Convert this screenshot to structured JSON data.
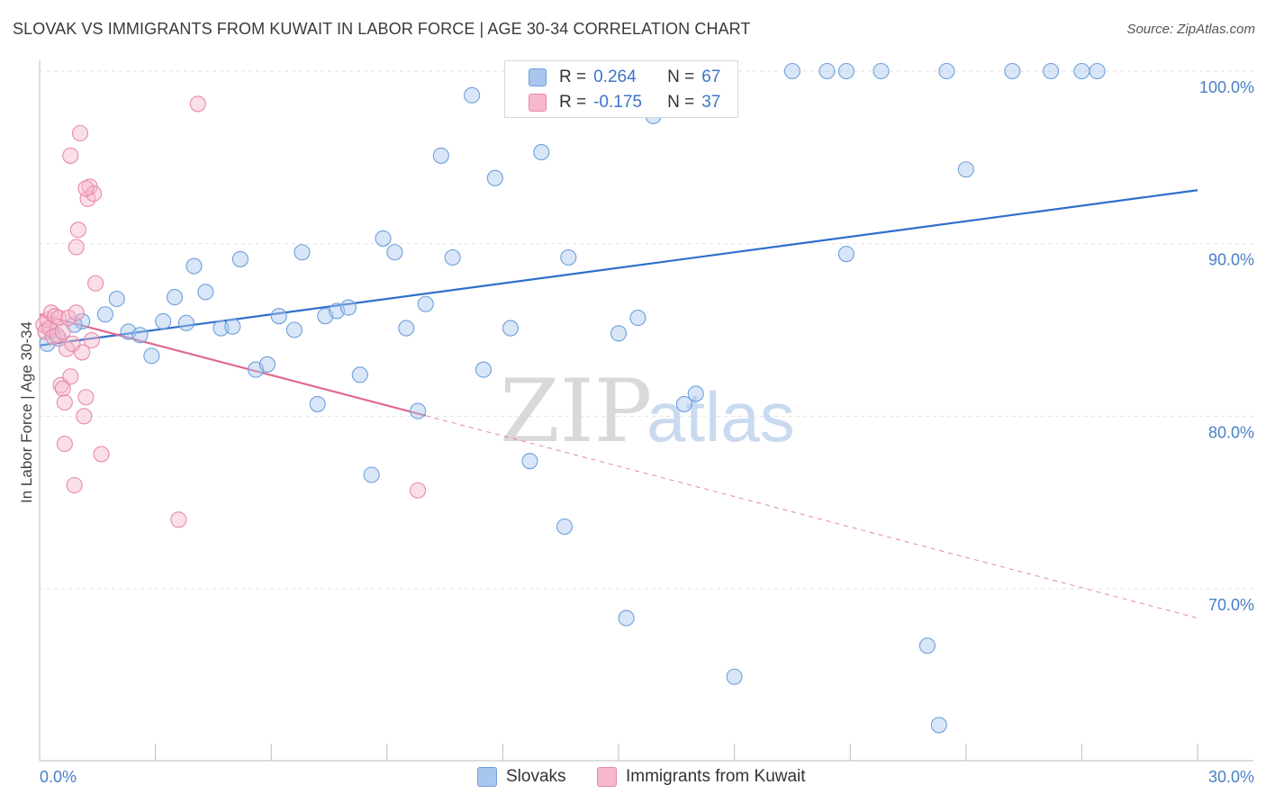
{
  "header": {
    "title": "SLOVAK VS IMMIGRANTS FROM KUWAIT IN LABOR FORCE | AGE 30-34 CORRELATION CHART",
    "source": "Source: ZipAtlas.com"
  },
  "watermark": {
    "zip": "ZIP",
    "atlas": "atlas"
  },
  "colors": {
    "blue_fill": "#a9c7ee",
    "blue_stroke": "#6f9fdc",
    "blue_line": "#2f6fcc",
    "pink_fill": "#f6b8cb",
    "pink_stroke": "#e88aa7",
    "pink_line": "#e06990",
    "grid": "#e2e2e2",
    "tick_text": "#4a7fc6"
  },
  "legend_top": {
    "rows": [
      {
        "r_label": "R =",
        "r_value": "0.264",
        "n_label": "N =",
        "n_value": "67"
      },
      {
        "r_label": "R =",
        "r_value": "-0.175",
        "n_label": "N =",
        "n_value": "37"
      }
    ]
  },
  "legend_bottom": {
    "items": [
      "Slovaks",
      "Immigrants from Kuwait"
    ]
  },
  "chart_data": {
    "type": "scatter",
    "title": "SLOVAK VS IMMIGRANTS FROM KUWAIT IN LABOR FORCE | AGE 30-34 CORRELATION CHART",
    "xlabel": "",
    "ylabel": "In Labor Force | Age 30-34",
    "xlim": [
      0,
      30
    ],
    "ylim": [
      60,
      102
    ],
    "x_tick_labels": [
      "0.0%",
      "30.0%"
    ],
    "y_ticks": [
      70,
      80,
      90,
      100
    ],
    "y_tick_labels": [
      "70.0%",
      "80.0%",
      "90.0%",
      "100.0%"
    ],
    "grid": true,
    "series": [
      {
        "name": "Slovaks",
        "r": 0.264,
        "n": 67,
        "trend": {
          "x": [
            0,
            30
          ],
          "y": [
            84.1,
            93.1
          ],
          "dashed_from": null
        },
        "points": [
          [
            0.2,
            84.2
          ],
          [
            0.5,
            84.5
          ],
          [
            1.1,
            85.5
          ],
          [
            1.7,
            85.9
          ],
          [
            2.0,
            86.8
          ],
          [
            2.3,
            84.9
          ],
          [
            2.6,
            84.7
          ],
          [
            2.9,
            83.5
          ],
          [
            3.2,
            85.5
          ],
          [
            3.5,
            86.9
          ],
          [
            3.8,
            85.4
          ],
          [
            4.0,
            88.7
          ],
          [
            4.3,
            87.2
          ],
          [
            4.7,
            85.1
          ],
          [
            5.0,
            85.2
          ],
          [
            5.2,
            89.1
          ],
          [
            5.6,
            82.7
          ],
          [
            5.9,
            83.0
          ],
          [
            6.2,
            85.8
          ],
          [
            6.6,
            85.0
          ],
          [
            6.8,
            89.5
          ],
          [
            7.2,
            80.7
          ],
          [
            7.4,
            85.8
          ],
          [
            7.7,
            86.1
          ],
          [
            8.0,
            86.3
          ],
          [
            8.3,
            82.4
          ],
          [
            8.6,
            76.6
          ],
          [
            8.9,
            90.3
          ],
          [
            9.2,
            89.5
          ],
          [
            9.5,
            85.1
          ],
          [
            9.8,
            80.3
          ],
          [
            10.0,
            86.5
          ],
          [
            10.4,
            95.1
          ],
          [
            10.7,
            89.2
          ],
          [
            11.2,
            98.6
          ],
          [
            11.5,
            82.7
          ],
          [
            11.8,
            93.8
          ],
          [
            12.2,
            85.1
          ],
          [
            12.5,
            100.0
          ],
          [
            12.7,
            77.4
          ],
          [
            13.0,
            95.3
          ],
          [
            13.6,
            73.6
          ],
          [
            13.7,
            89.2
          ],
          [
            14.8,
            100.0
          ],
          [
            15.0,
            84.8
          ],
          [
            15.2,
            68.3
          ],
          [
            15.5,
            85.7
          ],
          [
            15.9,
            97.4
          ],
          [
            16.1,
            100.0
          ],
          [
            16.7,
            80.7
          ],
          [
            17.0,
            81.3
          ],
          [
            18.0,
            64.9
          ],
          [
            19.5,
            100.0
          ],
          [
            20.4,
            100.0
          ],
          [
            20.9,
            89.4
          ],
          [
            20.9,
            100.0
          ],
          [
            21.8,
            100.0
          ],
          [
            23.0,
            66.7
          ],
          [
            23.3,
            62.1
          ],
          [
            23.5,
            100.0
          ],
          [
            24.0,
            94.3
          ],
          [
            25.2,
            100.0
          ],
          [
            26.2,
            100.0
          ],
          [
            27.0,
            100.0
          ],
          [
            27.4,
            100.0
          ],
          [
            0.9,
            85.3
          ],
          [
            0.3,
            85.0
          ]
        ]
      },
      {
        "name": "Immigrants from Kuwait",
        "r": -0.175,
        "n": 37,
        "trend": {
          "x": [
            0,
            30
          ],
          "y": [
            85.9,
            68.3
          ],
          "dashed_from": 10.0
        },
        "points": [
          [
            0.1,
            85.3
          ],
          [
            0.15,
            84.9
          ],
          [
            0.2,
            85.6
          ],
          [
            0.25,
            85.1
          ],
          [
            0.3,
            86.0
          ],
          [
            0.35,
            84.6
          ],
          [
            0.4,
            85.8
          ],
          [
            0.45,
            84.7
          ],
          [
            0.5,
            85.7
          ],
          [
            0.55,
            81.8
          ],
          [
            0.6,
            84.9
          ],
          [
            0.65,
            78.4
          ],
          [
            0.7,
            83.9
          ],
          [
            0.75,
            85.7
          ],
          [
            0.8,
            82.3
          ],
          [
            0.9,
            76.0
          ],
          [
            0.95,
            89.8
          ],
          [
            1.0,
            90.8
          ],
          [
            1.05,
            96.4
          ],
          [
            1.1,
            83.7
          ],
          [
            1.15,
            80.0
          ],
          [
            1.2,
            81.1
          ],
          [
            1.25,
            92.6
          ],
          [
            1.3,
            93.3
          ],
          [
            1.35,
            84.4
          ],
          [
            1.4,
            92.9
          ],
          [
            1.45,
            87.7
          ],
          [
            1.6,
            77.8
          ],
          [
            0.8,
            95.1
          ],
          [
            0.6,
            81.6
          ],
          [
            0.65,
            80.8
          ],
          [
            1.2,
            93.2
          ],
          [
            3.6,
            74.0
          ],
          [
            4.1,
            98.1
          ],
          [
            9.8,
            75.7
          ],
          [
            0.85,
            84.2
          ],
          [
            0.95,
            86.0
          ]
        ]
      }
    ]
  }
}
